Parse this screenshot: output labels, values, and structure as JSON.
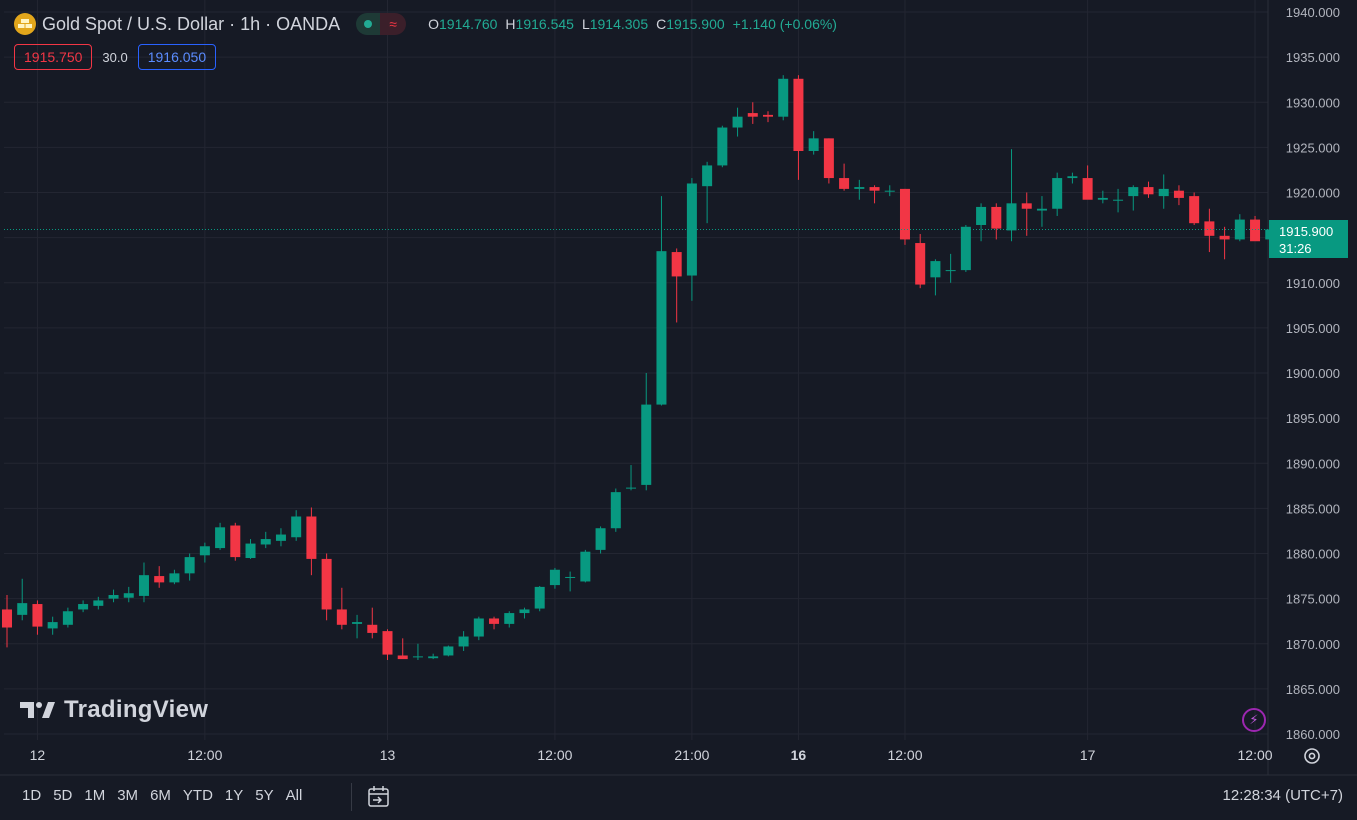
{
  "header": {
    "title": "Gold Spot / U.S. Dollar · 1h · OANDA",
    "ohlc": [
      {
        "key": "O",
        "value": "1914.760"
      },
      {
        "key": "H",
        "value": "1916.545"
      },
      {
        "key": "L",
        "value": "1914.305"
      },
      {
        "key": "C",
        "value": "1915.900"
      }
    ],
    "change": "+1.140 (+0.06%)",
    "wave_icon": "≈"
  },
  "trade": {
    "sell_price": "1915.750",
    "spread": "30.0",
    "buy_price": "1916.050"
  },
  "price_label": {
    "price": "1915.900",
    "countdown": "31:26"
  },
  "logo": "TradingView",
  "bottom": {
    "ranges": [
      "1D",
      "5D",
      "1M",
      "3M",
      "6M",
      "YTD",
      "1Y",
      "5Y",
      "All"
    ],
    "clock": "12:28:34 (UTC+7)"
  },
  "icons": {
    "symbol": "gold-bars-icon",
    "bolt": "lightning-icon",
    "settings": "gear-icon",
    "goto": "calendar-arrow-icon"
  },
  "colors": {
    "up": "#089981",
    "down": "#f23645",
    "background": "#161a25",
    "grid": "#232632",
    "axis_text": "#b2b5be"
  },
  "chart_data": {
    "type": "candlestick",
    "interval": "1h",
    "ylim": [
      1860,
      1940
    ],
    "y_ticks": [
      "1940.000",
      "1935.000",
      "1930.000",
      "1925.000",
      "1920.000",
      "1915.000",
      "1910.000",
      "1905.000",
      "1900.000",
      "1895.000",
      "1890.000",
      "1885.000",
      "1880.000",
      "1875.000",
      "1870.000",
      "1865.000",
      "1860.000"
    ],
    "x_ticks": [
      {
        "label": "12",
        "bold": false,
        "bar": 2
      },
      {
        "label": "12:00",
        "bold": false,
        "bar": 13
      },
      {
        "label": "13",
        "bold": false,
        "bar": 25
      },
      {
        "label": "12:00",
        "bold": false,
        "bar": 36
      },
      {
        "label": "21:00",
        "bold": false,
        "bar": 45
      },
      {
        "label": "16",
        "bold": true,
        "bar": 52
      },
      {
        "label": "12:00",
        "bold": false,
        "bar": 59
      },
      {
        "label": "17",
        "bold": false,
        "bar": 71
      },
      {
        "label": "12:00",
        "bold": false,
        "bar": 82
      }
    ],
    "last_price": 1915.9,
    "candles": [
      [
        1873.8,
        1875.4,
        1869.6,
        1871.8
      ],
      [
        1873.2,
        1877.2,
        1872.6,
        1874.5
      ],
      [
        1874.4,
        1874.8,
        1871.0,
        1871.9
      ],
      [
        1871.7,
        1873.0,
        1871.0,
        1872.4
      ],
      [
        1872.1,
        1874.0,
        1871.8,
        1873.6
      ],
      [
        1873.8,
        1874.8,
        1873.5,
        1874.4
      ],
      [
        1874.2,
        1875.2,
        1873.8,
        1874.8
      ],
      [
        1875.0,
        1876.0,
        1874.6,
        1875.4
      ],
      [
        1875.1,
        1876.3,
        1874.6,
        1875.6
      ],
      [
        1875.3,
        1879.0,
        1874.6,
        1877.6
      ],
      [
        1877.5,
        1878.6,
        1876.2,
        1876.8
      ],
      [
        1876.8,
        1878.2,
        1876.6,
        1877.8
      ],
      [
        1877.8,
        1880.0,
        1877.0,
        1879.6
      ],
      [
        1879.8,
        1881.2,
        1879.0,
        1880.8
      ],
      [
        1880.6,
        1883.4,
        1880.4,
        1882.9
      ],
      [
        1883.1,
        1883.4,
        1879.2,
        1879.6
      ],
      [
        1879.5,
        1881.6,
        1879.4,
        1881.1
      ],
      [
        1881.0,
        1882.4,
        1880.6,
        1881.6
      ],
      [
        1881.4,
        1882.8,
        1880.8,
        1882.1
      ],
      [
        1881.8,
        1884.8,
        1881.4,
        1884.1
      ],
      [
        1884.1,
        1885.1,
        1877.6,
        1879.4
      ],
      [
        1879.4,
        1880.0,
        1872.6,
        1873.8
      ],
      [
        1873.8,
        1876.2,
        1871.6,
        1872.1
      ],
      [
        1872.2,
        1873.2,
        1870.6,
        1872.4
      ],
      [
        1872.1,
        1874.0,
        1870.6,
        1871.2
      ],
      [
        1871.4,
        1871.6,
        1868.2,
        1868.8
      ],
      [
        1868.7,
        1870.6,
        1868.4,
        1868.3
      ],
      [
        1868.6,
        1870.0,
        1868.2,
        1868.6
      ],
      [
        1868.4,
        1868.9,
        1868.3,
        1868.6
      ],
      [
        1868.7,
        1869.8,
        1868.6,
        1869.7
      ],
      [
        1869.7,
        1871.4,
        1869.2,
        1870.8
      ],
      [
        1870.8,
        1873.0,
        1870.4,
        1872.8
      ],
      [
        1872.8,
        1873.0,
        1871.6,
        1872.2
      ],
      [
        1872.2,
        1873.6,
        1871.8,
        1873.4
      ],
      [
        1873.4,
        1874.0,
        1872.8,
        1873.8
      ],
      [
        1873.9,
        1876.4,
        1873.6,
        1876.3
      ],
      [
        1876.5,
        1878.4,
        1876.1,
        1878.2
      ],
      [
        1877.4,
        1878.0,
        1875.8,
        1877.4
      ],
      [
        1876.9,
        1880.4,
        1876.8,
        1880.2
      ],
      [
        1880.4,
        1883.0,
        1880.0,
        1882.8
      ],
      [
        1882.8,
        1887.2,
        1882.4,
        1886.8
      ],
      [
        1887.3,
        1889.8,
        1887.0,
        1887.3
      ],
      [
        1887.6,
        1900.0,
        1887.0,
        1896.5
      ],
      [
        1896.5,
        1919.6,
        1896.4,
        1913.5
      ],
      [
        1913.4,
        1913.8,
        1905.6,
        1910.7
      ],
      [
        1910.8,
        1921.6,
        1908.0,
        1921.0
      ],
      [
        1920.7,
        1923.4,
        1916.6,
        1923.0
      ],
      [
        1923.0,
        1927.4,
        1922.8,
        1927.2
      ],
      [
        1927.2,
        1929.4,
        1926.2,
        1928.4
      ],
      [
        1928.8,
        1930.0,
        1927.6,
        1928.4
      ],
      [
        1928.6,
        1929.0,
        1927.8,
        1928.4
      ],
      [
        1928.4,
        1933.0,
        1928.0,
        1932.6
      ],
      [
        1932.6,
        1933.0,
        1921.4,
        1924.6
      ],
      [
        1924.6,
        1926.8,
        1924.2,
        1926.0
      ],
      [
        1926.0,
        1926.0,
        1921.0,
        1921.6
      ],
      [
        1921.6,
        1923.2,
        1920.2,
        1920.4
      ],
      [
        1920.4,
        1921.4,
        1919.2,
        1920.6
      ],
      [
        1920.6,
        1920.8,
        1918.8,
        1920.2
      ],
      [
        1920.2,
        1920.8,
        1919.6,
        1920.2
      ],
      [
        1920.4,
        1920.4,
        1914.2,
        1914.8
      ],
      [
        1914.4,
        1915.4,
        1909.4,
        1909.8
      ],
      [
        1910.6,
        1912.6,
        1908.6,
        1912.4
      ],
      [
        1911.4,
        1913.2,
        1910.0,
        1911.4
      ],
      [
        1911.4,
        1916.4,
        1911.2,
        1916.2
      ],
      [
        1916.4,
        1918.8,
        1914.6,
        1918.4
      ],
      [
        1918.4,
        1918.8,
        1914.8,
        1916.0
      ],
      [
        1915.8,
        1924.8,
        1914.6,
        1918.8
      ],
      [
        1918.8,
        1920.0,
        1915.2,
        1918.2
      ],
      [
        1918.0,
        1919.6,
        1916.2,
        1918.2
      ],
      [
        1918.2,
        1922.2,
        1917.4,
        1921.6
      ],
      [
        1921.6,
        1922.2,
        1921.0,
        1921.8
      ],
      [
        1921.6,
        1923.0,
        1919.6,
        1919.2
      ],
      [
        1919.2,
        1920.2,
        1918.8,
        1919.4
      ],
      [
        1919.2,
        1920.4,
        1917.8,
        1919.2
      ],
      [
        1919.6,
        1920.8,
        1918.0,
        1920.6
      ],
      [
        1920.6,
        1921.2,
        1919.4,
        1919.8
      ],
      [
        1919.6,
        1922.0,
        1918.2,
        1920.4
      ],
      [
        1920.2,
        1920.8,
        1918.6,
        1919.4
      ],
      [
        1919.6,
        1920.0,
        1916.4,
        1916.6
      ],
      [
        1916.8,
        1918.2,
        1913.4,
        1915.2
      ],
      [
        1915.2,
        1916.2,
        1912.6,
        1914.8
      ],
      [
        1914.8,
        1917.6,
        1914.6,
        1917.0
      ],
      [
        1917.0,
        1917.4,
        1914.8,
        1914.6
      ],
      [
        1914.8,
        1916.6,
        1914.4,
        1915.9
      ]
    ]
  }
}
